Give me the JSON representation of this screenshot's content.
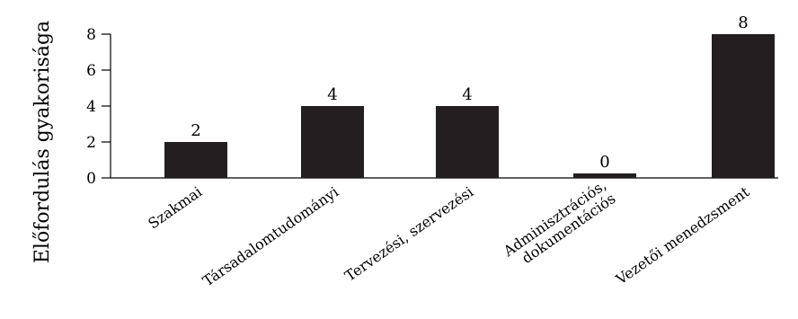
{
  "chart_data": {
    "type": "bar",
    "title": "",
    "xlabel": "",
    "ylabel": "Előfordulás gyakorisága",
    "categories": [
      [
        "Szakmai"
      ],
      [
        "Társadalomtudományi"
      ],
      [
        "Tervezési, szervezési"
      ],
      [
        "Adminisztrációs,",
        "dokumentációs"
      ],
      [
        "Vezetői menedzsment"
      ]
    ],
    "values": [
      2,
      4,
      4,
      0,
      8
    ],
    "data_labels": [
      "2",
      "4",
      "4",
      "0",
      "8"
    ],
    "y_ticks": [
      "0",
      "2",
      "4",
      "6",
      "8"
    ],
    "ylim": [
      0,
      8
    ],
    "bar_color": "#231f20",
    "grid": false,
    "legend": "none"
  }
}
